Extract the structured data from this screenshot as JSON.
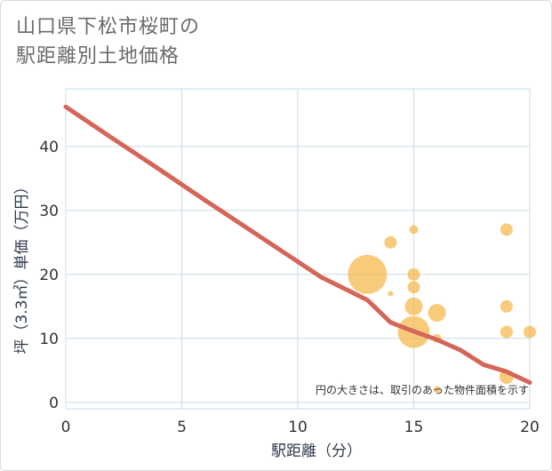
{
  "title": {
    "line1": "山口県下松市桜町の",
    "line2": "駅距離別土地価格"
  },
  "chart_data": {
    "type": "scatter",
    "title": "山口県下松市桜町の駅距離別土地価格",
    "xlabel": "駅距離（分）",
    "ylabel": "坪（3.3㎡）単価（万円）",
    "xlim": [
      0,
      20
    ],
    "ylim": [
      -1,
      49
    ],
    "xticks": [
      0,
      5,
      10,
      15,
      20
    ],
    "yticks": [
      0,
      10,
      20,
      30,
      40
    ],
    "grid": true,
    "annotation": "円の大きさは、取引のあった物件面積を示す",
    "points": [
      {
        "x": 13,
        "y": 20,
        "size": 22
      },
      {
        "x": 14,
        "y": 25,
        "size": 7
      },
      {
        "x": 14,
        "y": 17,
        "size": 3
      },
      {
        "x": 15,
        "y": 27,
        "size": 5
      },
      {
        "x": 15,
        "y": 20,
        "size": 7
      },
      {
        "x": 15,
        "y": 18,
        "size": 7
      },
      {
        "x": 15,
        "y": 15,
        "size": 10
      },
      {
        "x": 15,
        "y": 11,
        "size": 18
      },
      {
        "x": 16,
        "y": 14,
        "size": 10
      },
      {
        "x": 16,
        "y": 10,
        "size": 5
      },
      {
        "x": 16,
        "y": 2,
        "size": 4
      },
      {
        "x": 19,
        "y": 27,
        "size": 7
      },
      {
        "x": 19,
        "y": 15,
        "size": 7
      },
      {
        "x": 19,
        "y": 11,
        "size": 7
      },
      {
        "x": 19,
        "y": 4,
        "size": 8
      },
      {
        "x": 20,
        "y": 11,
        "size": 7
      }
    ],
    "trend_line": {
      "x": [
        0,
        2,
        4,
        6,
        8,
        10,
        11,
        12,
        13,
        14,
        15,
        16,
        17,
        18,
        19,
        20
      ],
      "y": [
        46.2,
        41.3,
        36.5,
        31.6,
        26.8,
        22.0,
        19.6,
        17.8,
        16.0,
        12.5,
        11.1,
        9.8,
        8.2,
        5.9,
        4.8,
        3.1
      ]
    },
    "colors": {
      "bubble": "#f5b94f",
      "trend": "#d4665a",
      "grid": "#c9dbe8"
    }
  }
}
